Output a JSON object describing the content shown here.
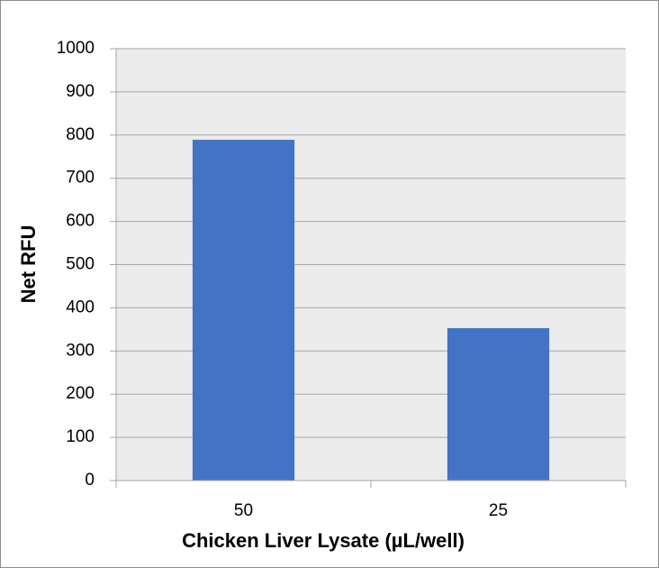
{
  "chart_data": {
    "type": "bar",
    "x_label": "Chicken Liver Lysate (µL/well)",
    "y_label": "Net RFU",
    "categories": [
      "50",
      "25"
    ],
    "values": [
      789,
      353
    ],
    "color": "#4472c4",
    "ylim": [
      0,
      1000
    ],
    "yticks": [
      0,
      100,
      200,
      300,
      400,
      500,
      600,
      700,
      800,
      900,
      1000
    ],
    "grid": true
  }
}
